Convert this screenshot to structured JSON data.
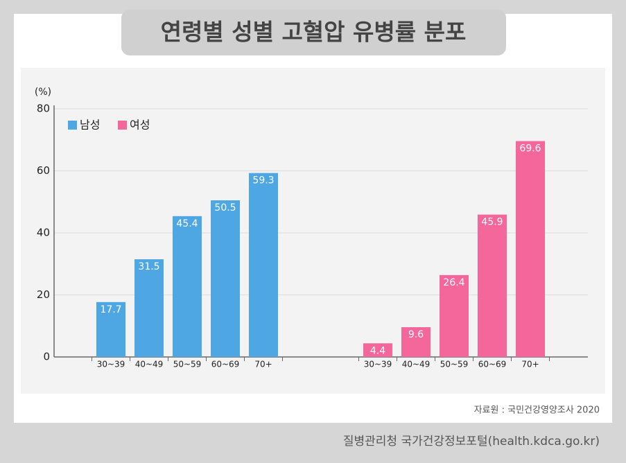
{
  "chart_data": {
    "type": "bar",
    "title": "연령별 성별 고혈압 유병률 분포",
    "y_label": "(%)",
    "categories": [
      "30~39",
      "40~49",
      "50~59",
      "60~69",
      "70+"
    ],
    "series": [
      {
        "name": "남성",
        "color": "#4ea7e2",
        "values": [
          17.7,
          31.5,
          45.4,
          50.5,
          59.3
        ]
      },
      {
        "name": "여성",
        "color": "#f4679a",
        "values": [
          4.4,
          9.6,
          26.4,
          45.9,
          69.6
        ]
      }
    ],
    "ylim": [
      0,
      80
    ],
    "yticks": [
      0,
      20,
      40,
      60,
      80
    ],
    "grid": true,
    "source": "자료원 : 국민건강영양조사 2020",
    "credit": "질병관리청 국가건강정보포털(health.kdca.go.kr)"
  }
}
